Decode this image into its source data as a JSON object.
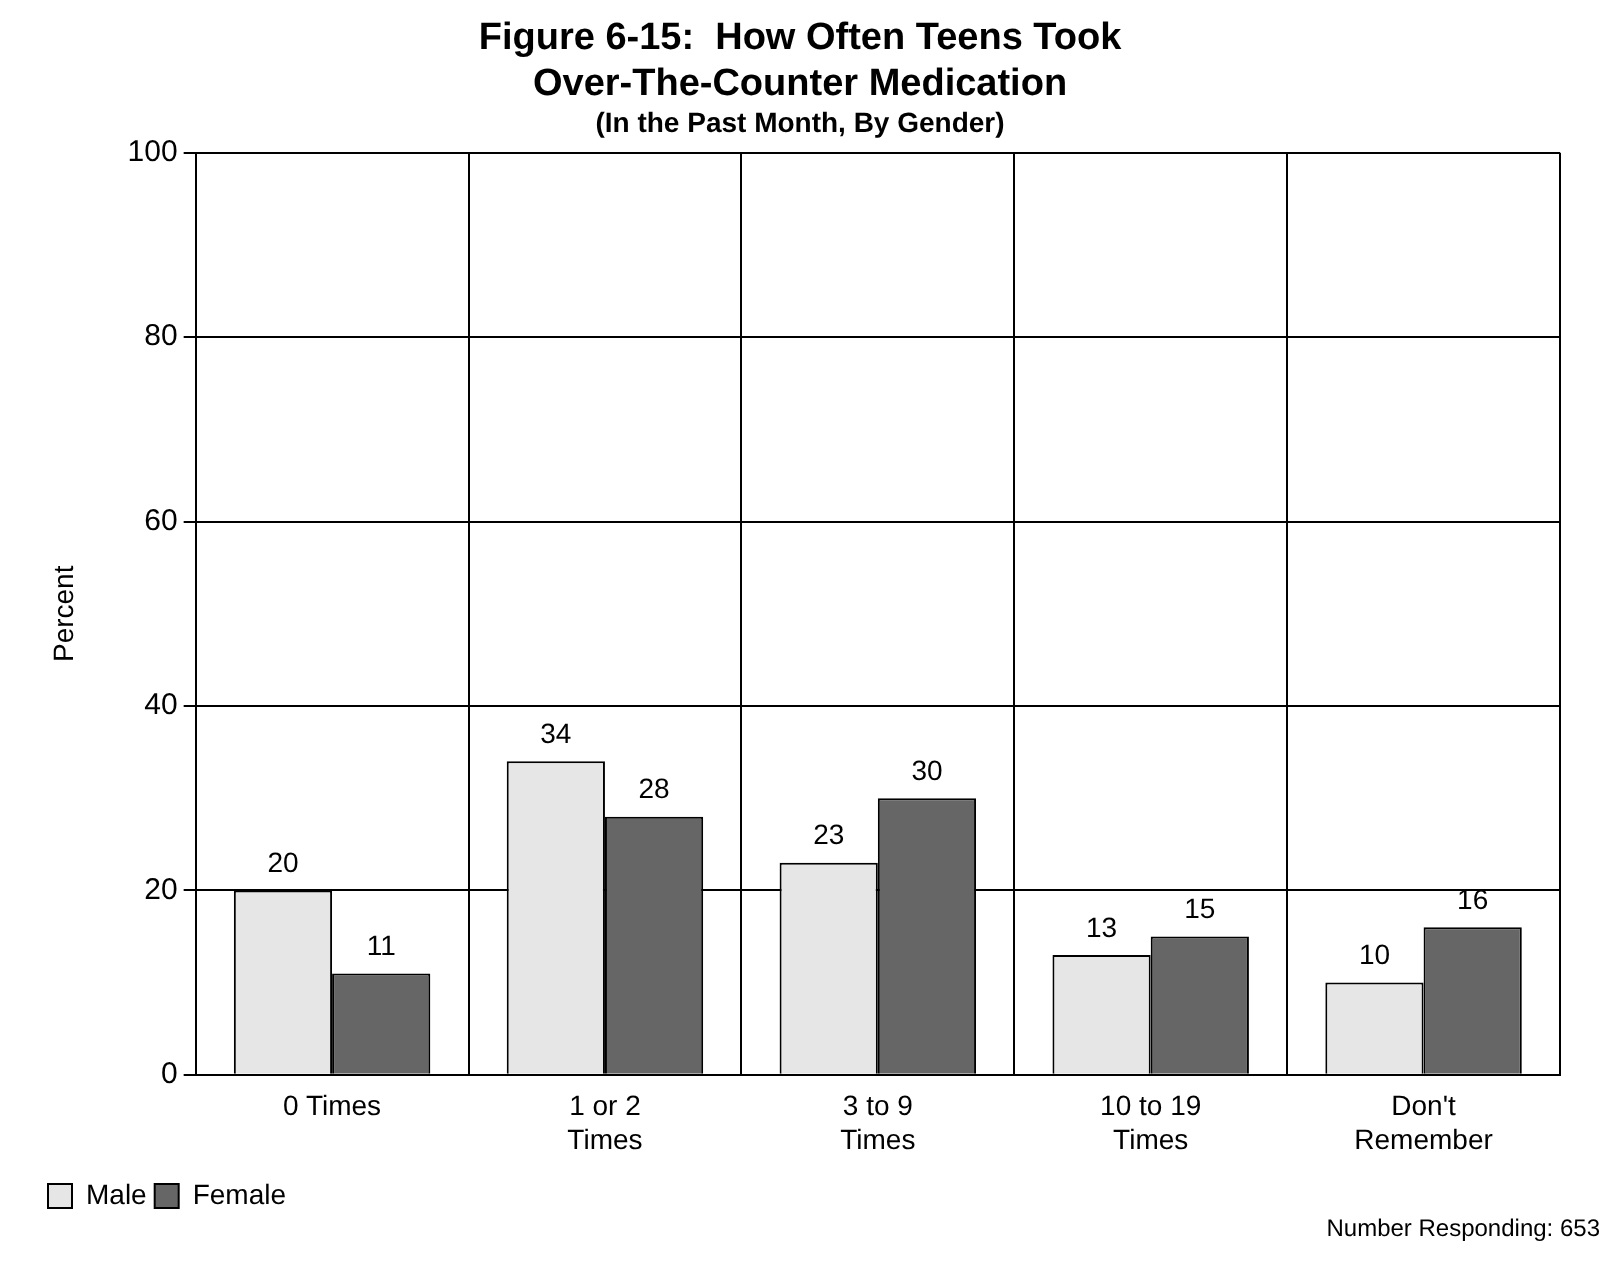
{
  "chart_data": {
    "type": "bar",
    "title": "Figure 6-15:  How Often Teens Took Over-The-Counter Medication",
    "subtitle": "(In the Past Month, By Gender)",
    "ylabel": "Percent",
    "categories": [
      "0 Times",
      "1 or 2 Times",
      "3 to 9 Times",
      "10 to 19 Times",
      "Don't Remember"
    ],
    "series": [
      {
        "name": "Male",
        "color": "#e6e6e6",
        "values": [
          20,
          34,
          23,
          13,
          10
        ]
      },
      {
        "name": "Female",
        "color": "#666666",
        "values": [
          11,
          28,
          30,
          15,
          16
        ]
      }
    ],
    "ylim": [
      0,
      100
    ],
    "yticks": [
      0,
      20,
      40,
      60,
      80,
      100
    ],
    "grid": true,
    "legend": "bottom left",
    "data_labels": true,
    "annotations": [
      "Number Responding:  653"
    ]
  }
}
